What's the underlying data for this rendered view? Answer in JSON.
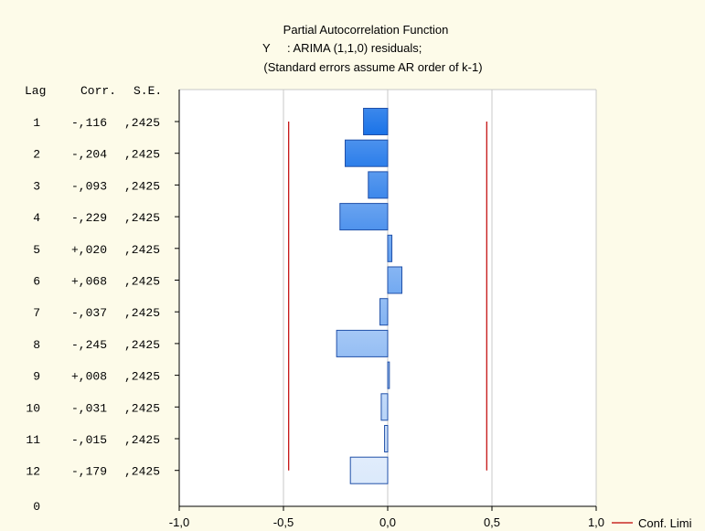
{
  "chart_data": {
    "type": "bar",
    "orientation": "horizontal",
    "title": "Partial Autocorrelation Function",
    "subtitle_var": "Y",
    "subtitle_desc": ": ARIMA (1,1,0) residuals;",
    "subtitle_note": "(Standard errors assume AR order of k-1)",
    "column_headers": {
      "lag": "Lag",
      "corr": "Corr.",
      "se": "S.E."
    },
    "rows": [
      {
        "lag": "1",
        "corr_text": "-,116",
        "se_text": ",2425",
        "value": -0.116
      },
      {
        "lag": "2",
        "corr_text": "-,204",
        "se_text": ",2425",
        "value": -0.204
      },
      {
        "lag": "3",
        "corr_text": "-,093",
        "se_text": ",2425",
        "value": -0.093
      },
      {
        "lag": "4",
        "corr_text": "-,229",
        "se_text": ",2425",
        "value": -0.229
      },
      {
        "lag": "5",
        "corr_text": "+,020",
        "se_text": ",2425",
        "value": 0.02
      },
      {
        "lag": "6",
        "corr_text": "+,068",
        "se_text": ",2425",
        "value": 0.068
      },
      {
        "lag": "7",
        "corr_text": "-,037",
        "se_text": ",2425",
        "value": -0.037
      },
      {
        "lag": "8",
        "corr_text": "-,245",
        "se_text": ",2425",
        "value": -0.245
      },
      {
        "lag": "9",
        "corr_text": "+,008",
        "se_text": ",2425",
        "value": 0.008
      },
      {
        "lag": "10",
        "corr_text": "-,031",
        "se_text": ",2425",
        "value": -0.031
      },
      {
        "lag": "11",
        "corr_text": "-,015",
        "se_text": ",2425",
        "value": -0.015
      },
      {
        "lag": "12",
        "corr_text": "-,179",
        "se_text": ",2425",
        "value": -0.179
      }
    ],
    "zero_row_label": "0",
    "x_ticks": [
      "-1,0",
      "-0,5",
      "0,0",
      "0,5",
      "1,0"
    ],
    "x_tick_values": [
      -1.0,
      -0.5,
      0.0,
      0.5,
      1.0
    ],
    "xlim": [
      -1.0,
      1.0
    ],
    "conf_limit": 0.475,
    "legend_label": "Conf. Limi",
    "legend_placement": "bottom-right",
    "grid": true,
    "colors": {
      "background": "#fdfbe9",
      "plot_bg": "#ffffff",
      "conf_line": "#c00000",
      "bar_stroke": "#1f4fa8",
      "bar_dark": "#1a73e8",
      "bar_light": "#dbe9fb",
      "grid": "#c8c8c8"
    }
  }
}
